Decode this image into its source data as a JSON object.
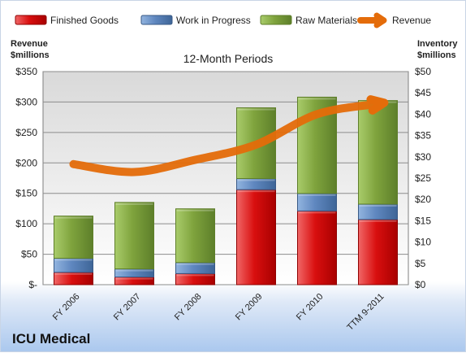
{
  "chart_data": {
    "type": "bar",
    "title": "12-Month Periods",
    "company": "ICU Medical",
    "categories": [
      "FY 2006",
      "FY 2007",
      "FY 2008",
      "FY 2009",
      "FY 2010",
      "TTM 9-2011"
    ],
    "left_axis": {
      "label_lines": [
        "Revenue",
        "$millions"
      ],
      "ylim": [
        0,
        350
      ],
      "ticks": [
        0,
        50,
        100,
        150,
        200,
        250,
        300,
        350
      ],
      "tick_labels": [
        "$-",
        "$50",
        "$100",
        "$150",
        "$200",
        "$250",
        "$300",
        "$350"
      ]
    },
    "right_axis": {
      "label_lines": [
        "Inventory",
        "$millions"
      ],
      "ylim": [
        0,
        50
      ],
      "ticks": [
        0,
        5,
        10,
        15,
        20,
        25,
        30,
        35,
        40,
        45,
        50
      ],
      "tick_labels": [
        "$0",
        "$5",
        "$10",
        "$15",
        "$20",
        "$25",
        "$30",
        "$35",
        "$40",
        "$45",
        "$50"
      ]
    },
    "series": [
      {
        "name": "Finished Goods",
        "type": "stacked-bar",
        "axis": "right",
        "values": [
          2.9,
          1.8,
          2.6,
          22.3,
          17.3,
          15.3
        ],
        "color": "#c00000"
      },
      {
        "name": "Work in Progress",
        "type": "stacked-bar",
        "axis": "right",
        "values": [
          3.3,
          1.9,
          2.6,
          2.6,
          4.1,
          3.6
        ],
        "color": "#4f81bd"
      },
      {
        "name": "Raw Materials",
        "type": "stacked-bar",
        "axis": "right",
        "values": [
          9.9,
          15.6,
          12.6,
          16.6,
          22.6,
          24.3
        ],
        "color": "#77933c"
      },
      {
        "name": "Revenue",
        "type": "line",
        "axis": "left",
        "values": [
          198,
          185,
          205,
          230,
          280,
          297
        ],
        "color": "#e46c0a"
      }
    ],
    "grid": true,
    "legend_position": "top"
  }
}
